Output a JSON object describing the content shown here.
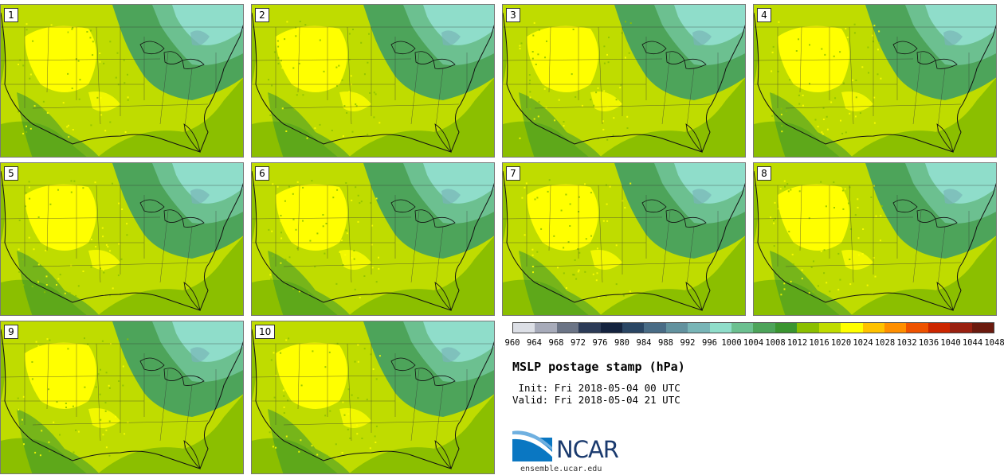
{
  "title": "MSLP postage stamp (hPa)",
  "init_line": " Init: Fri 2018-05-04 00 UTC",
  "valid_line": "Valid: Fri 2018-05-04 21 UTC",
  "logo": {
    "name": "NCAR",
    "url": "ensemble.ucar.edu"
  },
  "members": [
    "1",
    "2",
    "3",
    "4",
    "5",
    "6",
    "7",
    "8",
    "9",
    "10"
  ],
  "colorbar": {
    "ticks": [
      "960",
      "964",
      "968",
      "972",
      "976",
      "980",
      "984",
      "988",
      "992",
      "996",
      "1000",
      "1004",
      "1008",
      "1012",
      "1016",
      "1020",
      "1024",
      "1028",
      "1032",
      "1036",
      "1040",
      "1044",
      "1048"
    ],
    "colors": [
      "#dcdfe6",
      "#a7abba",
      "#6b7486",
      "#2c3b57",
      "#14233f",
      "#2a4664",
      "#496c86",
      "#62929f",
      "#78b5b7",
      "#8fddca",
      "#6cc090",
      "#4da45a",
      "#3a9530",
      "#8bbf00",
      "#bfdc00",
      "#ffff00",
      "#ffc200",
      "#ff8f00",
      "#ee5200",
      "#cc2600",
      "#992010",
      "#6b1a0e"
    ]
  },
  "map_colors": {
    "sea_low": "#8bbf00",
    "land_mid": "#bfdc00",
    "high": "#ffff00",
    "ne_dark": "#4da45a",
    "ne_mid": "#6cc090",
    "ne_light": "#8fddca",
    "ne_blue": "#78b5b7",
    "sw_dark": "#3a9530"
  }
}
